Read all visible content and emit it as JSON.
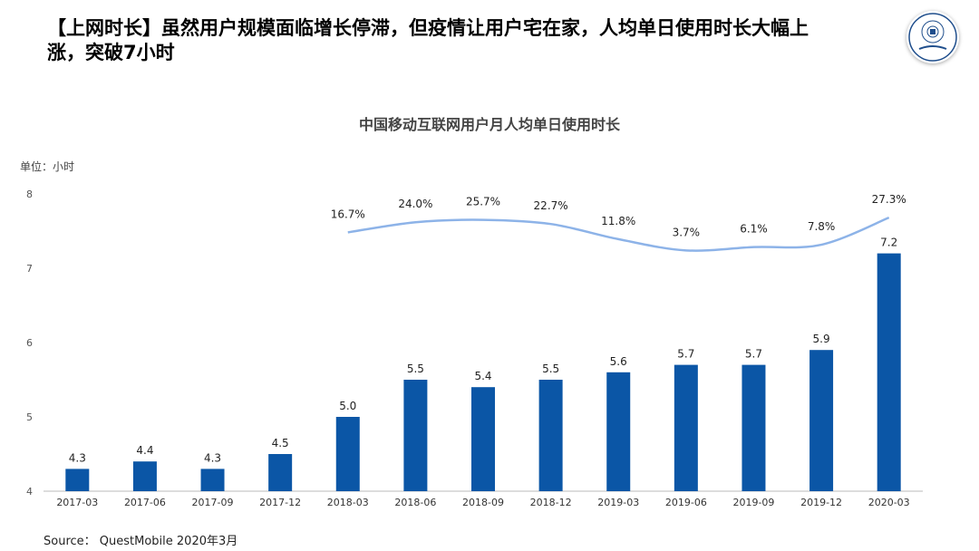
{
  "slide": {
    "title": "【上网时长】虽然用户规模面临增长停滞，但疫情让用户宅在家，人均单日使用时长大幅上涨，突破7小时",
    "source": "Source： QuestMobile 2020年3月"
  },
  "colors": {
    "bar": "#0b56a6",
    "line": "#8db3e8",
    "logo": "#1f4e8c"
  },
  "logo": {
    "name": "university-seal-logo"
  },
  "chart_data": {
    "type": "bar",
    "title": "中国移动互联网用户月人均单日使用时长",
    "unit": "单位：小时",
    "categories": [
      "2017-03",
      "2017-06",
      "2017-09",
      "2017-12",
      "2018-03",
      "2018-06",
      "2018-09",
      "2018-12",
      "2019-03",
      "2019-06",
      "2019-09",
      "2019-12",
      "2020-03"
    ],
    "ylim": [
      4,
      8
    ],
    "yticks": [
      4,
      5,
      6,
      7,
      8
    ],
    "series": [
      {
        "values": [
          4.3,
          4.4,
          4.3,
          4.5,
          5.0,
          5.5,
          5.4,
          5.5,
          5.6,
          5.7,
          5.7,
          5.9,
          7.2
        ]
      }
    ],
    "growth_line": {
      "type": "line",
      "start_category": "2018-03",
      "values": [
        16.7,
        24.0,
        25.7,
        22.7,
        11.8,
        3.7,
        6.1,
        7.8,
        27.3
      ],
      "labels": [
        "16.7%",
        "24.0%",
        "25.7%",
        "22.7%",
        "11.8%",
        "3.7%",
        "6.1%",
        "7.8%",
        "27.3%"
      ]
    },
    "grid": false,
    "legend": "none"
  }
}
